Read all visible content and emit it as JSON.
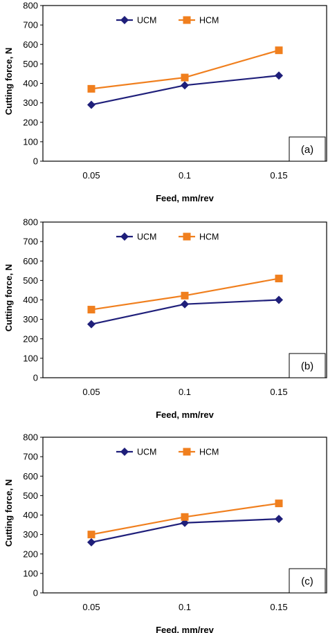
{
  "chart_data": [
    {
      "type": "line",
      "panel_label": "(a)",
      "x": [
        "0.05",
        "0.1",
        "0.15"
      ],
      "series": [
        {
          "name": "UCM",
          "values": [
            290,
            390,
            440
          ],
          "color": "#1f1f7a",
          "marker": "diamond"
        },
        {
          "name": "HCM",
          "values": [
            372,
            430,
            570
          ],
          "color": "#f07f1e",
          "marker": "square"
        }
      ],
      "xlabel": "Feed, mm/rev",
      "ylabel": "Cutting force, N",
      "ylim": [
        0,
        800
      ],
      "yticks": [
        0,
        100,
        200,
        300,
        400,
        500,
        600,
        700,
        800
      ],
      "grid": false,
      "legend": "top"
    },
    {
      "type": "line",
      "panel_label": "(b)",
      "x": [
        "0.05",
        "0.1",
        "0.15"
      ],
      "series": [
        {
          "name": "UCM",
          "values": [
            275,
            378,
            400
          ],
          "color": "#1f1f7a",
          "marker": "diamond"
        },
        {
          "name": "HCM",
          "values": [
            350,
            422,
            510
          ],
          "color": "#f07f1e",
          "marker": "square"
        }
      ],
      "xlabel": "Feed, mm/rev",
      "ylabel": "Cutting force, N",
      "ylim": [
        0,
        800
      ],
      "yticks": [
        0,
        100,
        200,
        300,
        400,
        500,
        600,
        700,
        800
      ],
      "grid": false,
      "legend": "top"
    },
    {
      "type": "line",
      "panel_label": "(c)",
      "x": [
        "0.05",
        "0.1",
        "0.15"
      ],
      "series": [
        {
          "name": "UCM",
          "values": [
            260,
            360,
            380
          ],
          "color": "#1f1f7a",
          "marker": "diamond"
        },
        {
          "name": "HCM",
          "values": [
            300,
            390,
            460
          ],
          "color": "#f07f1e",
          "marker": "square"
        }
      ],
      "xlabel": "Feed, mm/rev",
      "ylabel": "Cutting force, N",
      "ylim": [
        0,
        800
      ],
      "yticks": [
        0,
        100,
        200,
        300,
        400,
        500,
        600,
        700,
        800
      ],
      "grid": false,
      "legend": "top"
    }
  ]
}
